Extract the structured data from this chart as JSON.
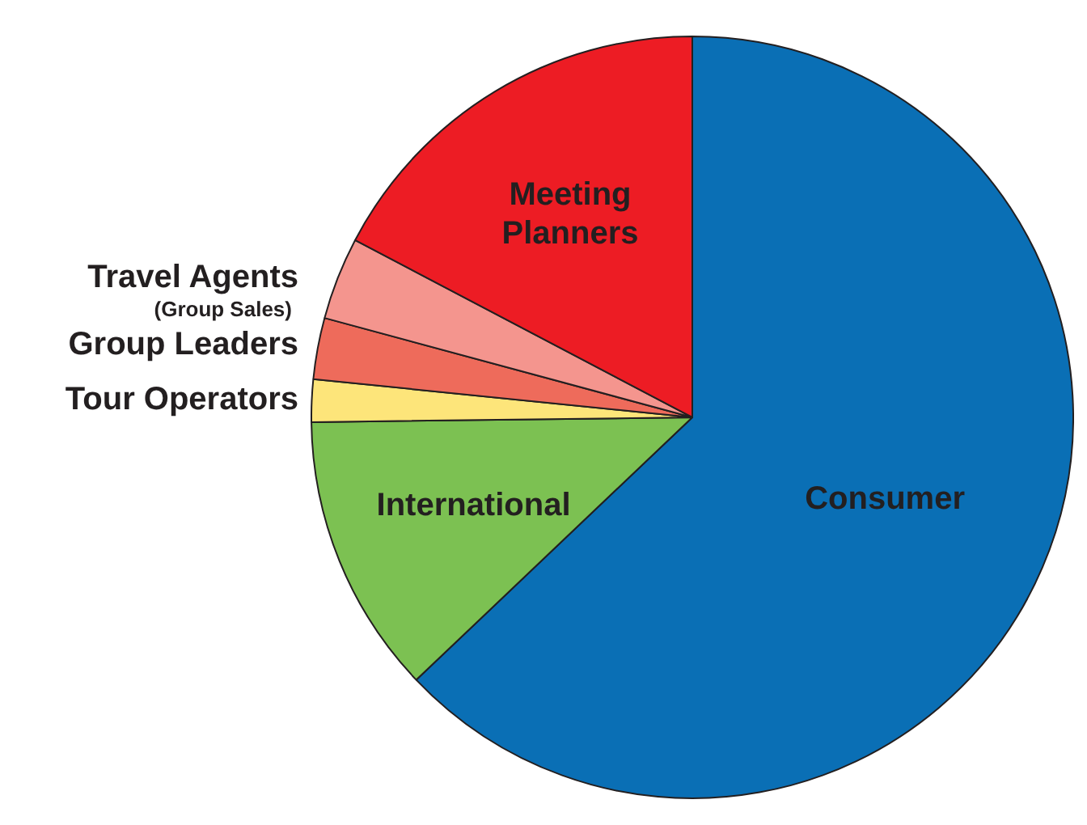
{
  "chart_data": {
    "type": "pie",
    "categories": [
      "Consumer",
      "International",
      "Tour Operators",
      "Group Leaders",
      "Travel Agents",
      "Meeting Planners"
    ],
    "values": [
      62.9,
      11.9,
      1.8,
      2.6,
      3.5,
      17.3
    ],
    "colors": [
      "#0a6fb5",
      "#7cc152",
      "#fde57a",
      "#ee6b5b",
      "#f4958e",
      "#ed1c24"
    ],
    "annotations": [
      {
        "text": "(Group Sales)",
        "x": "Travel Agents"
      }
    ],
    "legend": false
  }
}
